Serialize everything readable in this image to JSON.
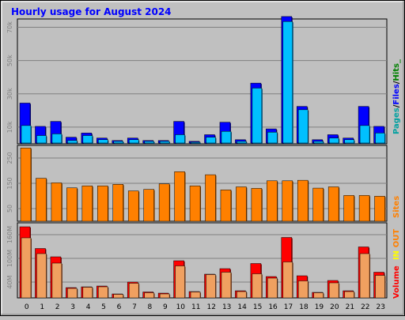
{
  "chart_data": [
    {
      "type": "bar",
      "title": "Hourly usage for August 2024",
      "categories": [
        "0",
        "1",
        "2",
        "3",
        "4",
        "5",
        "6",
        "7",
        "8",
        "9",
        "10",
        "11",
        "12",
        "13",
        "14",
        "15",
        "16",
        "17",
        "18",
        "19",
        "20",
        "21",
        "22",
        "23"
      ],
      "ylim": [
        0,
        75000
      ],
      "ytick_labels": [
        "10k",
        "30k",
        "50k",
        "70k"
      ],
      "ytick_values": [
        10000,
        30000,
        50000,
        70000
      ],
      "legend": [
        "Pages",
        "Files",
        "Hits"
      ],
      "legend_separators": [
        "/",
        "/",
        "_"
      ],
      "colors": {
        "pages": "#000080",
        "files": "#0000ff",
        "hits": "#00c0ff"
      },
      "series": [
        {
          "name": "Pages",
          "values": [
            0,
            0,
            0,
            0,
            0,
            0,
            0,
            0,
            0,
            0,
            0,
            0,
            0,
            0,
            0,
            0,
            0,
            0,
            0,
            0,
            0,
            0,
            0,
            0
          ]
        },
        {
          "name": "Files",
          "values": [
            24000,
            10000,
            13000,
            3500,
            6000,
            3000,
            1500,
            3000,
            1500,
            1500,
            13000,
            1000,
            5000,
            12500,
            2000,
            36000,
            8500,
            76000,
            22000,
            2000,
            5000,
            3000,
            22000,
            10000
          ]
        },
        {
          "name": "Hits",
          "values": [
            10500,
            4500,
            5500,
            1500,
            4500,
            2000,
            1000,
            2000,
            1000,
            1000,
            5000,
            500,
            3500,
            7000,
            1000,
            33000,
            6500,
            73000,
            20000,
            1000,
            3000,
            2000,
            10500,
            6000
          ]
        }
      ]
    },
    {
      "type": "bar",
      "categories": [
        "0",
        "1",
        "2",
        "3",
        "4",
        "5",
        "6",
        "7",
        "8",
        "9",
        "10",
        "11",
        "12",
        "13",
        "14",
        "15",
        "16",
        "17",
        "18",
        "19",
        "20",
        "21",
        "22",
        "23"
      ],
      "ylim": [
        0,
        300
      ],
      "ytick_labels": [
        "50",
        "150",
        "250"
      ],
      "ytick_values": [
        50,
        150,
        250
      ],
      "legend": [
        "Sites"
      ],
      "colors": {
        "sites": "#ff8000"
      },
      "series": [
        {
          "name": "Sites",
          "values": [
            290,
            170,
            152,
            132,
            140,
            140,
            146,
            120,
            126,
            148,
            196,
            140,
            184,
            124,
            136,
            130,
            160,
            160,
            162,
            131,
            136,
            102,
            102,
            99
          ]
        }
      ]
    },
    {
      "type": "bar",
      "categories": [
        "0",
        "1",
        "2",
        "3",
        "4",
        "5",
        "6",
        "7",
        "8",
        "9",
        "10",
        "11",
        "12",
        "13",
        "14",
        "15",
        "16",
        "17",
        "18",
        "19",
        "20",
        "21",
        "22",
        "23"
      ],
      "ylim": [
        0,
        190
      ],
      "ytick_labels": [
        "40M",
        "100M",
        "160M"
      ],
      "ytick_values": [
        40,
        100,
        160
      ],
      "legend": [
        "Volume",
        "IN",
        "OUT",
        "Sites"
      ],
      "legend_separators": [
        "/",
        "/"
      ],
      "colors": {
        "volume": "#ff0000",
        "in": "#ffff00",
        "out": "#ff8000",
        "kb": "#ff0000"
      },
      "series": [
        {
          "name": "Volume",
          "values": [
            180,
            125,
            104,
            26,
            28,
            30,
            10,
            40,
            15,
            12,
            94,
            16,
            60,
            74,
            18,
            87,
            54,
            153,
            56,
            14,
            44,
            18,
            129,
            65
          ]
        },
        {
          "name": "IN",
          "values": [
            152,
            112,
            88,
            24,
            27,
            28,
            9,
            37,
            13,
            10,
            81,
            15,
            59,
            65,
            16,
            61,
            50,
            91,
            43,
            13,
            38,
            16,
            112,
            57
          ]
        }
      ]
    }
  ]
}
